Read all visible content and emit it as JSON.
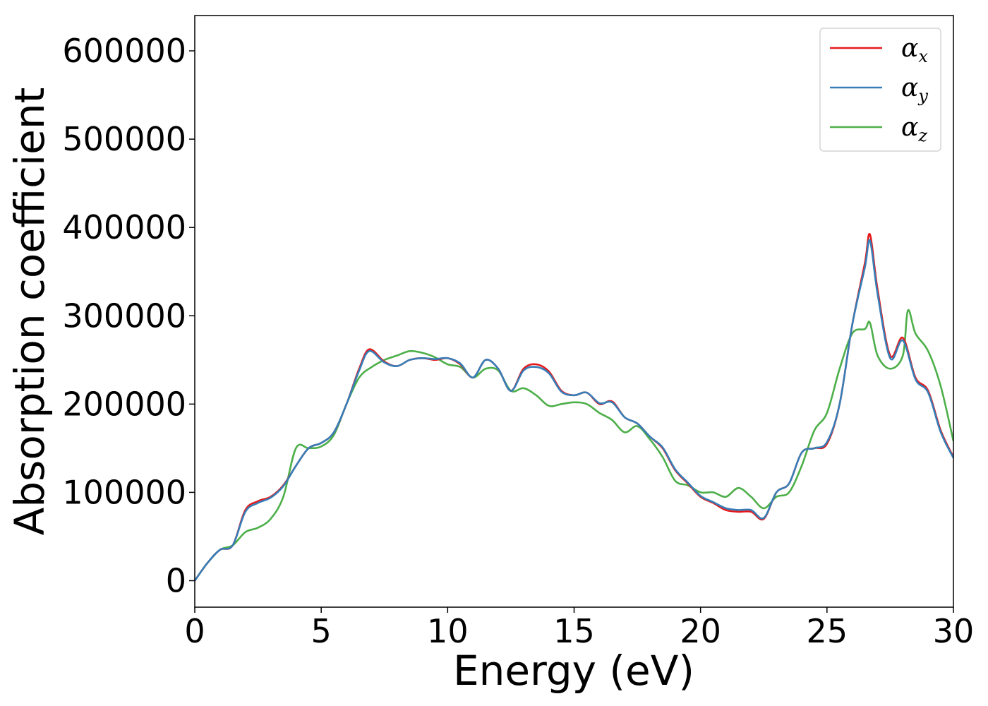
{
  "chart_data": {
    "type": "line",
    "xlabel": "Energy (eV)",
    "ylabel": "Absorption coefficient",
    "xlim": [
      0,
      30
    ],
    "ylim": [
      -30000,
      640000
    ],
    "xticks": [
      0,
      5,
      10,
      15,
      20,
      25,
      30
    ],
    "yticks": [
      0,
      100000,
      200000,
      300000,
      400000,
      500000,
      600000
    ],
    "xtick_labels": [
      "0",
      "5",
      "10",
      "15",
      "20",
      "25",
      "30"
    ],
    "ytick_labels": [
      "0",
      "100000",
      "200000",
      "300000",
      "400000",
      "500000",
      "600000"
    ],
    "grid": false,
    "legend_position": "top-right",
    "series": [
      {
        "name": "α",
        "subscript": "x",
        "color": "#e41a1c",
        "x": [
          0,
          0.5,
          1,
          1.5,
          2,
          2.5,
          3,
          3.5,
          4,
          4.5,
          5,
          5.5,
          6,
          6.5,
          6.9,
          7.5,
          8,
          8.5,
          9,
          9.5,
          10,
          10.5,
          11,
          11.5,
          12,
          12.5,
          13,
          13.5,
          14,
          14.5,
          15,
          15.5,
          16,
          16.5,
          17,
          17.5,
          18,
          18.5,
          19,
          19.5,
          20,
          20.5,
          21,
          21.5,
          22,
          22.5,
          23,
          23.5,
          24,
          24.5,
          25,
          25.5,
          26,
          26.5,
          26.7,
          27,
          27.5,
          28,
          28.5,
          29,
          29.5,
          30
        ],
        "values": [
          0,
          20000,
          35000,
          40000,
          80000,
          90000,
          95000,
          108000,
          130000,
          150000,
          156000,
          168000,
          200000,
          240000,
          262000,
          248000,
          243000,
          250000,
          252000,
          250000,
          252000,
          245000,
          230000,
          250000,
          240000,
          215000,
          240000,
          245000,
          237000,
          215000,
          210000,
          213000,
          200000,
          203000,
          185000,
          178000,
          163000,
          150000,
          125000,
          110000,
          95000,
          88000,
          80000,
          78000,
          78000,
          70000,
          100000,
          110000,
          145000,
          150000,
          155000,
          200000,
          290000,
          360000,
          392000,
          330000,
          255000,
          275000,
          230000,
          215000,
          170000,
          140000
        ]
      },
      {
        "name": "α",
        "subscript": "y",
        "color": "#377eb8",
        "x": [
          0,
          0.5,
          1,
          1.5,
          2,
          2.5,
          3,
          3.5,
          4,
          4.5,
          5,
          5.5,
          6,
          6.5,
          6.9,
          7.5,
          8,
          8.5,
          9,
          9.5,
          10,
          10.5,
          11,
          11.5,
          12,
          12.5,
          13,
          13.5,
          14,
          14.5,
          15,
          15.5,
          16,
          16.5,
          17,
          17.5,
          18,
          18.5,
          19,
          19.5,
          20,
          20.5,
          21,
          21.5,
          22,
          22.5,
          23,
          23.5,
          24,
          24.5,
          25,
          25.5,
          26,
          26.5,
          26.7,
          27,
          27.5,
          28,
          28.5,
          29,
          29.5,
          30
        ],
        "values": [
          0,
          20000,
          35000,
          40000,
          78000,
          88000,
          94000,
          107000,
          130000,
          150000,
          156000,
          168000,
          200000,
          238000,
          260000,
          247000,
          243000,
          250000,
          252000,
          251000,
          252000,
          246000,
          230000,
          250000,
          240000,
          215000,
          238000,
          242000,
          235000,
          214000,
          210000,
          213000,
          201000,
          202000,
          185000,
          178000,
          163000,
          151000,
          126000,
          111000,
          96000,
          89000,
          82000,
          80000,
          80000,
          71000,
          100000,
          110000,
          145000,
          150000,
          157000,
          200000,
          290000,
          355000,
          385000,
          325000,
          252000,
          272000,
          228000,
          213000,
          168000,
          139000
        ]
      },
      {
        "name": "α",
        "subscript": "z",
        "color": "#4daf4a",
        "x": [
          0,
          0.5,
          1,
          1.5,
          2,
          2.5,
          3,
          3.5,
          4,
          4.5,
          5,
          5.5,
          6,
          6.5,
          7,
          7.5,
          8,
          8.5,
          9,
          9.5,
          10,
          10.5,
          11,
          11.5,
          12,
          12.5,
          13,
          13.5,
          14,
          14.5,
          15,
          15.5,
          16,
          16.5,
          17,
          17.5,
          18,
          18.5,
          19,
          19.5,
          20,
          20.5,
          21,
          21.5,
          22,
          22.5,
          23,
          23.5,
          24,
          24.5,
          25,
          25.5,
          26,
          26.5,
          26.7,
          27,
          27.5,
          28,
          28.2,
          28.5,
          29,
          29.5,
          30
        ],
        "values": [
          0,
          20000,
          35000,
          40000,
          55000,
          60000,
          70000,
          95000,
          150000,
          150000,
          152000,
          165000,
          200000,
          230000,
          242000,
          250000,
          255000,
          260000,
          258000,
          253000,
          245000,
          242000,
          230000,
          240000,
          238000,
          215000,
          218000,
          210000,
          198000,
          200000,
          202000,
          200000,
          190000,
          182000,
          168000,
          175000,
          160000,
          140000,
          113000,
          108000,
          100000,
          100000,
          95000,
          105000,
          95000,
          82000,
          95000,
          100000,
          130000,
          170000,
          190000,
          240000,
          280000,
          285000,
          292000,
          255000,
          240000,
          255000,
          306000,
          280000,
          260000,
          220000,
          158000
        ]
      }
    ]
  }
}
